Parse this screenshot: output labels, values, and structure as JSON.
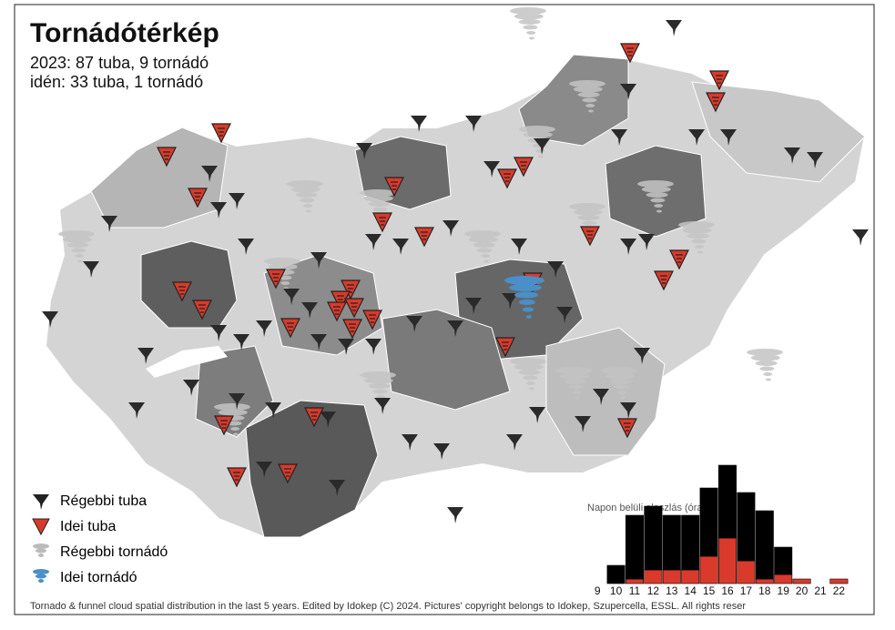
{
  "header": {
    "title": "Tornádótérkép",
    "line1": "2023: 87 tuba, 9 tornádó",
    "line2": "idén: 33 tuba, 1 tornádó"
  },
  "legend": [
    "Régebbi tuba",
    "Idei tuba",
    "Régebbi tornádó",
    "Idei tornádó"
  ],
  "footer": "Tornado & funnel cloud spatial distribution in the last 5 years. Edited by Idokep (C) 2024. Pictures' copyright belongs to Idokep, Szupercella, ESSL. All rights reser",
  "chart_data": {
    "type": "bar",
    "title": "Napon belüli eloszlás (óra)",
    "categories": [
      "9",
      "10",
      "11",
      "12",
      "13",
      "14",
      "15",
      "16",
      "17",
      "18",
      "19",
      "20",
      "21",
      "22"
    ],
    "series": [
      {
        "color": "#d93a2b",
        "values": [
          0,
          0,
          1,
          3,
          3,
          3,
          6,
          10,
          5,
          1,
          2,
          1,
          0,
          1
        ]
      },
      {
        "color": "#000000",
        "values": [
          0,
          4,
          14,
          14,
          12,
          12,
          15,
          16,
          15,
          15,
          6,
          0,
          0,
          0
        ]
      }
    ]
  }
}
